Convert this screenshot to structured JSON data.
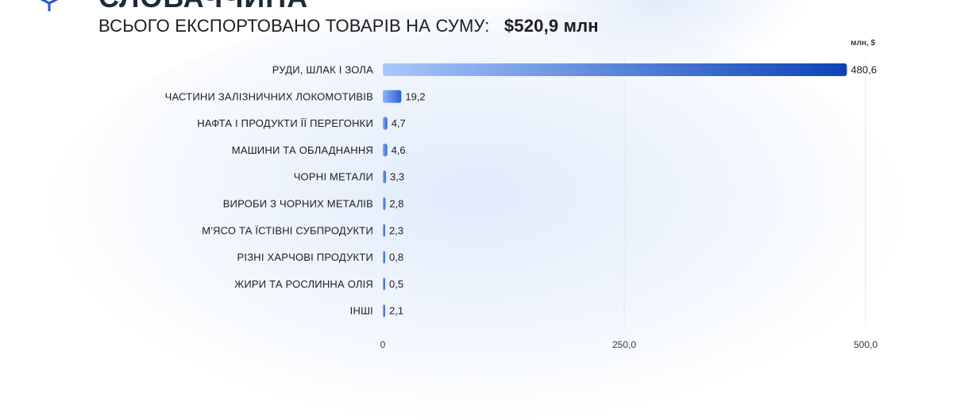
{
  "header": {
    "title_partial": "СЛОВАЧЧИНА",
    "total_label": "ВСЬОГО ЕКСПОРТОВАНО ТОВАРІВ НА СУМУ:",
    "total_value": "$520,9 млн"
  },
  "logo": {
    "icon": "box-icon",
    "color": "#2b55c9"
  },
  "colors": {
    "bar_start": "#a9c8fb",
    "bar_end": "#0b43b8",
    "small_bar_start": "#8fb4f4",
    "small_bar_end": "#2a5fd6",
    "grid": "#e3e8f0",
    "text": "#1d1d1f"
  },
  "chart_data": {
    "type": "bar",
    "orientation": "horizontal",
    "unit_label": "млн, $",
    "categories": [
      "РУДИ, ШЛАК І ЗОЛА",
      "ЧАСТИНИ ЗАЛІЗНИЧНИХ ЛОКОМОТИВІВ",
      "НАФТА І ПРОДУКТИ ЇЇ ПЕРЕГОНКИ",
      "МАШИНИ ТА ОБЛАДНАННЯ",
      "ЧОРНІ МЕТАЛИ",
      "ВИРОБИ З ЧОРНИХ МЕТАЛІВ",
      "М'ЯСО ТА ЇСТІВНІ СУБПРОДУКТИ",
      "РІЗНІ ХАРЧОВІ ПРОДУКТИ",
      "ЖИРИ ТА РОСЛИННА ОЛІЯ",
      "ІНШІ"
    ],
    "values": [
      480.6,
      19.2,
      4.7,
      4.6,
      3.3,
      2.8,
      2.3,
      0.8,
      0.5,
      2.1
    ],
    "value_labels": [
      "480,6",
      "19,2",
      "4,7",
      "4,6",
      "3,3",
      "2,8",
      "2,3",
      "0,8",
      "0,5",
      "2,1"
    ],
    "xlim": [
      0,
      500
    ],
    "x_ticks": [
      0,
      250,
      500
    ],
    "x_tick_labels": [
      "0",
      "250,0",
      "500,0"
    ],
    "grid": true
  }
}
